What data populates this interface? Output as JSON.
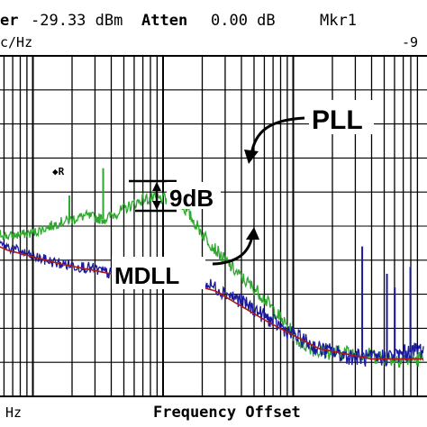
{
  "header": {
    "line1_prefix": "er",
    "ref_value": "-29.33 dBm",
    "atten_label": "Atten",
    "atten_value": "0.00 dB",
    "marker": "Mkr1",
    "line2_left": "c/Hz",
    "line2_right": "-9",
    "marker_glyph": "◆R"
  },
  "footer": {
    "left": "Hz",
    "xlabel": "Frequency Offset"
  },
  "annotations": {
    "pll": "PLL",
    "mdll": "MDLL",
    "gap": "9dB"
  },
  "colors": {
    "pll": "#2ea82e",
    "mdll": "#1a1aa0",
    "fit": "#b01818",
    "grid": "#000000"
  },
  "chart_data": {
    "type": "line",
    "title": "",
    "xlabel": "Frequency Offset",
    "ylabel": "",
    "x_scale": "log",
    "x_decades": 4,
    "grid": true,
    "series": [
      {
        "name": "PLL",
        "x": [
          0.0,
          0.2,
          0.4,
          0.6,
          0.8,
          1.0,
          1.2,
          1.4,
          1.55,
          1.7,
          1.85,
          2.0,
          2.15,
          2.3,
          2.45,
          2.6,
          2.75,
          2.9,
          3.05,
          3.2,
          3.4,
          3.6,
          3.8,
          4.0
        ],
        "y": [
          -3.8,
          -4.2,
          -4.6,
          -5.0,
          -5.3,
          -5.2,
          -4.9,
          -4.7,
          -4.8,
          -4.5,
          -4.2,
          -4.2,
          -4.4,
          -5.2,
          -5.9,
          -6.5,
          -7.0,
          -7.7,
          -8.4,
          -8.7,
          -8.7,
          -8.8,
          -8.9,
          -8.9
        ]
      },
      {
        "name": "MDLL",
        "x": [
          0.0,
          0.2,
          0.4,
          0.6,
          0.8,
          1.0,
          1.2,
          1.4,
          1.6,
          1.8,
          2.0,
          2.2,
          2.4,
          2.6,
          2.8,
          3.0,
          3.2,
          3.4,
          3.6,
          3.8,
          4.0
        ],
        "y": [
          -4.1,
          -4.4,
          -4.9,
          -5.3,
          -5.6,
          -5.9,
          -6.1,
          -6.2,
          -6.4,
          -6.5,
          -6.4,
          -6.5,
          -6.8,
          -7.2,
          -7.7,
          -8.2,
          -8.6,
          -8.8,
          -8.9,
          -8.8,
          -8.6
        ]
      },
      {
        "x": [
          0.0,
          0.4,
          0.8,
          1.2,
          1.6,
          2.0,
          2.4,
          2.8,
          3.2,
          3.6,
          4.0
        ],
        "y": [
          -4.2,
          -5.0,
          -5.7,
          -6.1,
          -6.4,
          -6.5,
          -6.9,
          -7.8,
          -8.6,
          -8.9,
          -8.9
        ]
      }
    ],
    "spurs": [
      {
        "series": "MDLL",
        "x": 3.53,
        "peak": -5.6
      },
      {
        "series": "MDLL",
        "x": 3.72,
        "peak": -6.4
      },
      {
        "series": "MDLL",
        "x": 3.78,
        "peak": -6.8
      },
      {
        "series": "MDLL",
        "x": 3.9,
        "peak": -6.2
      },
      {
        "series": "PLL",
        "x": 1.54,
        "peak": -3.3
      },
      {
        "series": "PLL",
        "x": 1.28,
        "peak": -4.1
      }
    ]
  }
}
